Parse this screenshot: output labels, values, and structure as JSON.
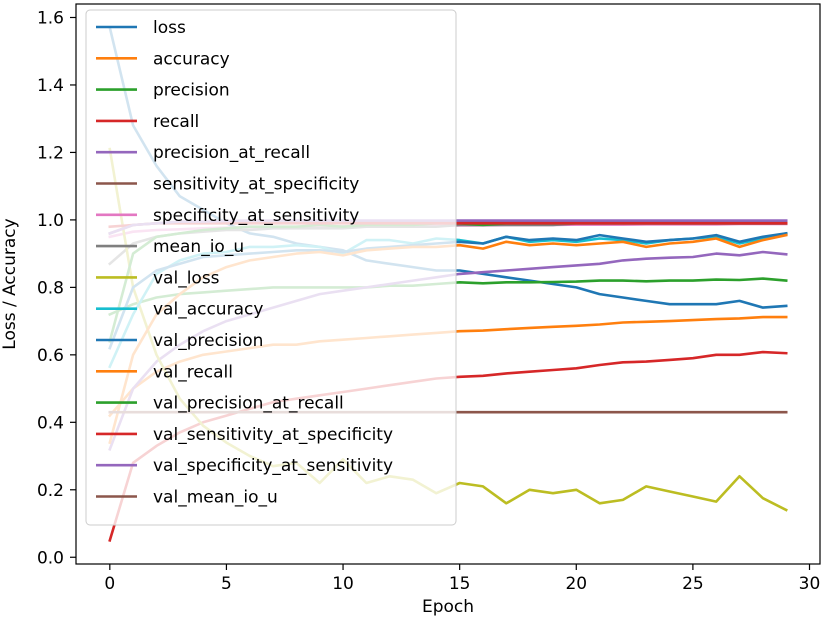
{
  "chart_data": {
    "type": "line",
    "title": "",
    "xlabel": "Epoch",
    "ylabel": "Loss / Accuracy",
    "xlim": [
      -1.45,
      30.45
    ],
    "ylim": [
      -0.02,
      1.64
    ],
    "xticks": [
      0,
      5,
      10,
      15,
      20,
      25,
      30
    ],
    "yticks": [
      0.0,
      0.2,
      0.4,
      0.6,
      0.8,
      1.0,
      1.2,
      1.4,
      1.6
    ],
    "xtick_labels": [
      "0",
      "5",
      "10",
      "15",
      "20",
      "25",
      "30"
    ],
    "ytick_labels": [
      "0.0",
      "0.2",
      "0.4",
      "0.6",
      "0.8",
      "1.0",
      "1.2",
      "1.4",
      "1.6"
    ],
    "grid": false,
    "legend_position": "upper-left",
    "x": [
      0,
      1,
      2,
      3,
      4,
      5,
      6,
      7,
      8,
      9,
      10,
      11,
      12,
      13,
      14,
      15,
      16,
      17,
      18,
      19,
      20,
      21,
      22,
      23,
      24,
      25,
      26,
      27,
      28,
      29
    ],
    "series": [
      {
        "name": "loss",
        "color": "#1f77b4",
        "values": [
          1.57,
          1.28,
          1.16,
          1.07,
          1.03,
          0.99,
          0.96,
          0.95,
          0.93,
          0.92,
          0.91,
          0.88,
          0.87,
          0.86,
          0.85,
          0.85,
          0.84,
          0.83,
          0.82,
          0.81,
          0.8,
          0.78,
          0.77,
          0.76,
          0.75,
          0.75,
          0.75,
          0.76,
          0.74,
          0.745
        ]
      },
      {
        "name": "accuracy",
        "color": "#ff7f0e",
        "values": [
          0.42,
          0.5,
          0.55,
          0.58,
          0.6,
          0.61,
          0.62,
          0.63,
          0.63,
          0.64,
          0.645,
          0.65,
          0.655,
          0.66,
          0.665,
          0.67,
          0.672,
          0.676,
          0.68,
          0.683,
          0.686,
          0.69,
          0.696,
          0.698,
          0.7,
          0.703,
          0.706,
          0.708,
          0.712,
          0.712
        ]
      },
      {
        "name": "precision",
        "color": "#2ca02c",
        "values": [
          0.72,
          0.75,
          0.77,
          0.78,
          0.785,
          0.79,
          0.795,
          0.8,
          0.8,
          0.8,
          0.8,
          0.8,
          0.805,
          0.805,
          0.81,
          0.815,
          0.812,
          0.815,
          0.815,
          0.816,
          0.817,
          0.82,
          0.82,
          0.818,
          0.82,
          0.82,
          0.823,
          0.822,
          0.826,
          0.82
        ]
      },
      {
        "name": "recall",
        "color": "#d62728",
        "values": [
          0.05,
          0.28,
          0.33,
          0.37,
          0.4,
          0.42,
          0.44,
          0.46,
          0.47,
          0.48,
          0.49,
          0.5,
          0.51,
          0.52,
          0.53,
          0.535,
          0.538,
          0.545,
          0.55,
          0.555,
          0.56,
          0.57,
          0.578,
          0.58,
          0.585,
          0.59,
          0.6,
          0.6,
          0.608,
          0.605
        ]
      },
      {
        "name": "precision_at_recall",
        "color": "#9467bd",
        "values": [
          0.32,
          0.5,
          0.58,
          0.63,
          0.67,
          0.7,
          0.72,
          0.74,
          0.76,
          0.78,
          0.79,
          0.8,
          0.81,
          0.82,
          0.83,
          0.84,
          0.845,
          0.85,
          0.855,
          0.86,
          0.865,
          0.87,
          0.88,
          0.885,
          0.888,
          0.89,
          0.9,
          0.895,
          0.905,
          0.898
        ]
      },
      {
        "name": "sensitivity_at_specificity",
        "color": "#8c564b",
        "values": [
          0.96,
          0.985,
          0.99,
          0.993,
          0.994,
          0.995,
          0.995,
          0.996,
          0.996,
          0.996,
          0.996,
          0.996,
          0.997,
          0.997,
          0.997,
          0.997,
          0.997,
          0.997,
          0.997,
          0.997,
          0.997,
          0.997,
          0.997,
          0.997,
          0.997,
          0.997,
          0.997,
          0.997,
          0.997,
          0.997
        ]
      },
      {
        "name": "specificity_at_sensitivity",
        "color": "#e377c2",
        "values": [
          0.95,
          0.965,
          0.97,
          0.972,
          0.975,
          0.977,
          0.978,
          0.979,
          0.98,
          0.98,
          0.981,
          0.982,
          0.982,
          0.983,
          0.983,
          0.984,
          0.984,
          0.985,
          0.985,
          0.985,
          0.986,
          0.986,
          0.986,
          0.987,
          0.987,
          0.987,
          0.987,
          0.988,
          0.988,
          0.988
        ]
      },
      {
        "name": "mean_io_u",
        "color": "#7f7f7f",
        "values": [
          0.87,
          0.93,
          0.95,
          0.96,
          0.965,
          0.97,
          0.97,
          0.975,
          0.975,
          0.975,
          0.975,
          0.98,
          0.98,
          0.98,
          0.98,
          0.985,
          0.985,
          0.985,
          0.985,
          0.985,
          0.99,
          0.99,
          0.99,
          0.99,
          0.99,
          0.99,
          0.99,
          0.99,
          0.99,
          0.99
        ]
      },
      {
        "name": "val_loss",
        "color": "#bcbd22",
        "values": [
          1.21,
          0.8,
          0.6,
          0.47,
          0.39,
          0.34,
          0.3,
          0.27,
          0.28,
          0.22,
          0.29,
          0.22,
          0.24,
          0.23,
          0.19,
          0.22,
          0.21,
          0.16,
          0.2,
          0.19,
          0.2,
          0.16,
          0.17,
          0.21,
          0.195,
          0.18,
          0.165,
          0.24,
          0.175,
          0.14
        ]
      },
      {
        "name": "val_accuracy",
        "color": "#17becf",
        "values": [
          0.565,
          0.72,
          0.84,
          0.88,
          0.9,
          0.905,
          0.92,
          0.92,
          0.925,
          0.92,
          0.9,
          0.94,
          0.94,
          0.93,
          0.945,
          0.94,
          0.93,
          0.95,
          0.935,
          0.94,
          0.935,
          0.945,
          0.94,
          0.93,
          0.94,
          0.945,
          0.95,
          0.93,
          0.945,
          0.96
        ]
      },
      {
        "name": "val_precision",
        "color": "#1f77b4",
        "values": [
          0.62,
          0.8,
          0.85,
          0.87,
          0.89,
          0.895,
          0.9,
          0.905,
          0.91,
          0.91,
          0.905,
          0.915,
          0.92,
          0.925,
          0.93,
          0.935,
          0.93,
          0.95,
          0.94,
          0.945,
          0.94,
          0.955,
          0.945,
          0.935,
          0.94,
          0.945,
          0.955,
          0.935,
          0.95,
          0.96
        ]
      },
      {
        "name": "val_recall",
        "color": "#ff7f0e",
        "values": [
          0.34,
          0.6,
          0.72,
          0.78,
          0.83,
          0.86,
          0.88,
          0.89,
          0.9,
          0.905,
          0.895,
          0.91,
          0.915,
          0.92,
          0.92,
          0.925,
          0.915,
          0.935,
          0.925,
          0.93,
          0.925,
          0.93,
          0.935,
          0.92,
          0.93,
          0.935,
          0.945,
          0.92,
          0.94,
          0.955
        ]
      },
      {
        "name": "val_precision_at_recall",
        "color": "#2ca02c",
        "values": [
          0.64,
          0.9,
          0.95,
          0.96,
          0.97,
          0.975,
          0.98,
          0.98,
          0.98,
          0.985,
          0.98,
          0.985,
          0.985,
          0.985,
          0.99,
          0.99,
          0.985,
          0.99,
          0.99,
          0.99,
          0.99,
          0.99,
          0.99,
          0.99,
          0.99,
          0.99,
          0.99,
          0.99,
          0.99,
          0.99
        ]
      },
      {
        "name": "val_sensitivity_at_specificity",
        "color": "#d62728",
        "values": [
          0.98,
          0.985,
          0.99,
          0.99,
          0.99,
          0.99,
          0.99,
          0.99,
          0.99,
          0.99,
          0.99,
          0.99,
          0.99,
          0.99,
          0.99,
          0.99,
          0.99,
          0.99,
          0.99,
          0.99,
          0.99,
          0.99,
          0.99,
          0.99,
          0.99,
          0.99,
          0.99,
          0.99,
          0.99,
          0.99
        ]
      },
      {
        "name": "val_specificity_at_sensitivity",
        "color": "#9467bd",
        "values": [
          0.96,
          0.985,
          0.99,
          0.995,
          0.995,
          0.997,
          0.998,
          0.998,
          0.998,
          0.998,
          0.998,
          0.998,
          0.998,
          0.998,
          0.998,
          0.998,
          0.998,
          0.998,
          0.998,
          0.998,
          0.998,
          0.998,
          0.998,
          0.998,
          0.998,
          0.998,
          0.998,
          0.998,
          0.998,
          0.998
        ]
      },
      {
        "name": "val_mean_io_u",
        "color": "#8c564b",
        "values": [
          0.43,
          0.43,
          0.43,
          0.43,
          0.43,
          0.43,
          0.43,
          0.43,
          0.43,
          0.43,
          0.43,
          0.43,
          0.43,
          0.43,
          0.43,
          0.43,
          0.43,
          0.43,
          0.43,
          0.43,
          0.43,
          0.43,
          0.43,
          0.43,
          0.43,
          0.43,
          0.43,
          0.43,
          0.43,
          0.43
        ]
      }
    ]
  }
}
